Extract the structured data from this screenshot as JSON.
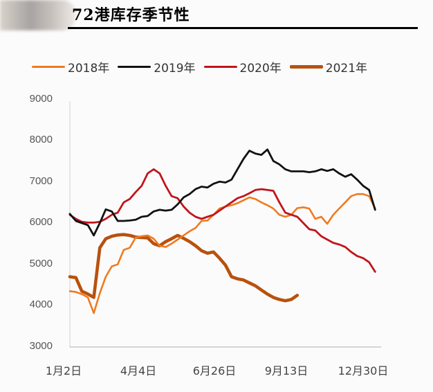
{
  "header": {
    "title": "72港库存季节性"
  },
  "legend": [
    {
      "label": "2018年",
      "color": "#f07a1e",
      "width": 3
    },
    {
      "label": "2019年",
      "color": "#111111",
      "width": 3
    },
    {
      "label": "2020年",
      "color": "#c0151a",
      "width": 3
    },
    {
      "label": "2021年",
      "color": "#b8510e",
      "width": 5
    }
  ],
  "chart_data": {
    "type": "line",
    "title": "72港库存季节性",
    "xlabel": "",
    "ylabel": "",
    "ylim": [
      3000,
      9000
    ],
    "yticks": [
      9000,
      8000,
      7000,
      6000,
      5000,
      4000,
      3000
    ],
    "x_tick_labels": [
      "1月2日",
      "4月4日",
      "6月26日",
      "9月13日",
      "12月30日"
    ],
    "x_tick_weeks": [
      0,
      13,
      25,
      36,
      51
    ],
    "x_range_weeks": [
      0,
      52
    ],
    "grid": false,
    "legend_position": "top",
    "series": [
      {
        "name": "2018年",
        "color": "#f07a1e",
        "weeks": [
          0,
          1,
          2,
          3,
          4,
          5,
          6,
          7,
          8,
          9,
          10,
          11,
          12,
          13,
          14,
          15,
          16,
          17,
          18,
          19,
          20,
          21,
          22,
          23,
          24,
          25,
          26,
          27,
          28,
          29,
          30,
          31,
          32,
          33,
          34,
          35,
          36,
          37,
          38,
          39,
          40,
          41,
          42,
          43,
          44,
          45,
          46,
          47,
          48,
          49,
          50,
          51
        ],
        "values": [
          4350,
          4330,
          4280,
          4200,
          3820,
          4300,
          4700,
          4950,
          5000,
          5350,
          5400,
          5650,
          5680,
          5700,
          5620,
          5450,
          5420,
          5500,
          5600,
          5700,
          5800,
          5880,
          6050,
          6060,
          6200,
          6350,
          6400,
          6430,
          6480,
          6550,
          6620,
          6580,
          6500,
          6430,
          6350,
          6200,
          6150,
          6200,
          6360,
          6380,
          6350,
          6100,
          6150,
          5980,
          6200,
          6350,
          6500,
          6650,
          6700,
          6700,
          6650,
          6350
        ]
      },
      {
        "name": "2019年",
        "color": "#111111",
        "weeks": [
          0,
          1,
          2,
          3,
          4,
          5,
          6,
          7,
          8,
          9,
          10,
          11,
          12,
          13,
          14,
          15,
          16,
          17,
          18,
          19,
          20,
          21,
          22,
          23,
          24,
          25,
          26,
          27,
          28,
          29,
          30,
          31,
          32,
          33,
          34,
          35,
          36,
          37,
          38,
          39,
          40,
          41,
          42,
          43,
          44,
          45,
          46,
          47,
          48,
          49,
          50,
          51
        ],
        "values": [
          6220,
          6050,
          6000,
          5950,
          5700,
          6000,
          6330,
          6280,
          6050,
          6050,
          6060,
          6080,
          6150,
          6170,
          6280,
          6320,
          6300,
          6320,
          6450,
          6620,
          6700,
          6820,
          6880,
          6860,
          6950,
          7000,
          6980,
          7050,
          7300,
          7550,
          7750,
          7680,
          7650,
          7780,
          7500,
          7420,
          7300,
          7250,
          7250,
          7250,
          7230,
          7250,
          7300,
          7260,
          7300,
          7200,
          7120,
          7180,
          7050,
          6900,
          6800,
          6320
        ]
      },
      {
        "name": "2020年",
        "color": "#c0151a",
        "weeks": [
          0,
          1,
          2,
          3,
          4,
          5,
          6,
          7,
          8,
          9,
          10,
          11,
          12,
          13,
          14,
          15,
          16,
          17,
          18,
          19,
          20,
          21,
          22,
          23,
          24,
          25,
          26,
          27,
          28,
          29,
          30,
          31,
          32,
          33,
          34,
          35,
          36,
          37,
          38,
          39,
          40,
          41,
          42,
          43,
          44,
          45,
          46,
          47,
          48,
          49,
          50,
          51
        ],
        "values": [
          6200,
          6100,
          6030,
          6010,
          6010,
          6030,
          6100,
          6200,
          6250,
          6500,
          6580,
          6750,
          6900,
          7200,
          7300,
          7200,
          6900,
          6650,
          6600,
          6400,
          6250,
          6150,
          6100,
          6150,
          6200,
          6300,
          6400,
          6500,
          6600,
          6650,
          6720,
          6800,
          6820,
          6800,
          6780,
          6500,
          6250,
          6200,
          6150,
          6000,
          5850,
          5820,
          5680,
          5600,
          5520,
          5480,
          5420,
          5300,
          5200,
          5150,
          5050,
          4820
        ]
      },
      {
        "name": "2021年",
        "color": "#b8510e",
        "weeks": [
          0,
          1,
          2,
          3,
          4,
          5,
          6,
          7,
          8,
          9,
          10,
          11,
          12,
          13,
          14,
          15,
          16,
          17,
          18,
          19,
          20,
          21,
          22,
          23,
          24,
          25,
          26,
          27,
          28,
          29,
          30,
          31,
          32,
          33,
          34,
          35,
          36,
          37,
          38,
          39,
          40
        ],
        "values": [
          4700,
          4680,
          4350,
          4280,
          4200,
          5400,
          5620,
          5680,
          5710,
          5720,
          5700,
          5660,
          5650,
          5640,
          5500,
          5450,
          5550,
          5620,
          5700,
          5630,
          5550,
          5450,
          5330,
          5270,
          5300,
          5150,
          4980,
          4700,
          4650,
          4620,
          4550,
          4480,
          4380,
          4280,
          4200,
          4150,
          4120,
          4150,
          4250,
          null,
          null
        ]
      }
    ]
  },
  "axis": {
    "y_labels": [
      "9000",
      "8000",
      "7000",
      "6000",
      "5000",
      "4000",
      "3000"
    ],
    "x_labels": [
      "1月2日",
      "4月4日",
      "6月26日",
      "9月13日",
      "12月30日"
    ]
  }
}
